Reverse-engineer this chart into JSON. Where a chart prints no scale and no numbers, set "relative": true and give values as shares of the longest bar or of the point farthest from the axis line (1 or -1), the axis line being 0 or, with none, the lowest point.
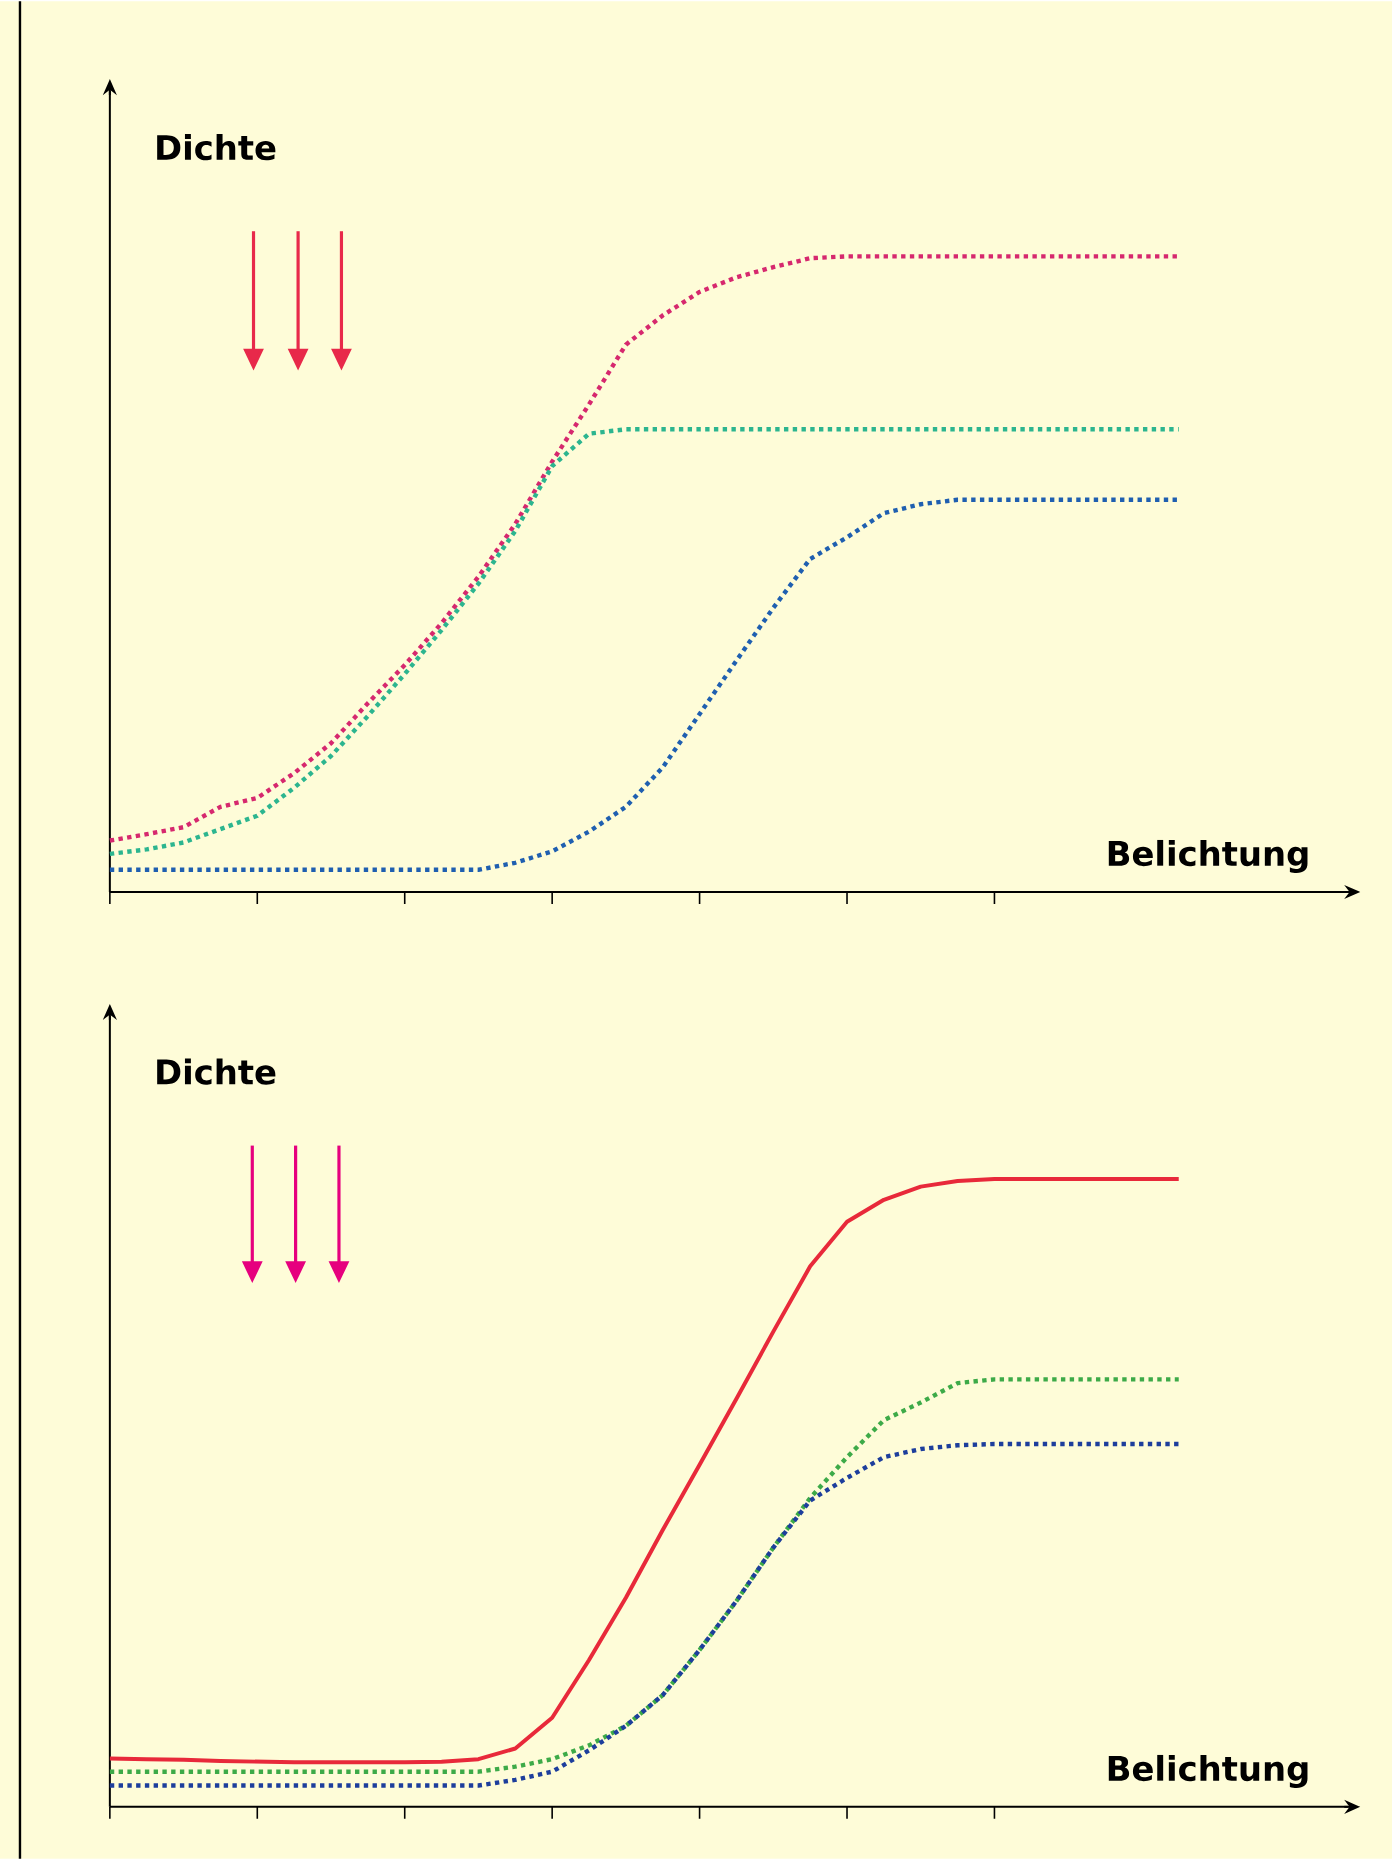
{
  "chart_data": [
    {
      "type": "line",
      "relative": true,
      "xlabel": "Belichtung",
      "ylabel": "Dichte",
      "categories": [
        null,
        null,
        null,
        null,
        null,
        null,
        null,
        null,
        null,
        null,
        null,
        null,
        null,
        null,
        null,
        null,
        null,
        null,
        null,
        null,
        null,
        null,
        null,
        null,
        null,
        null,
        null,
        null,
        null,
        null
      ],
      "series": [
        {
          "color": "#d6286e",
          "line_style": "dotted",
          "values": [
            0.081,
            0.091,
            0.102,
            0.134,
            0.148,
            0.187,
            0.234,
            0.297,
            0.357,
            0.423,
            0.496,
            0.579,
            0.677,
            0.767,
            0.861,
            0.907,
            0.944,
            0.967,
            0.983,
            0.997,
            1.0,
            1.0,
            1.0,
            1.0,
            1.0,
            1.0,
            1.0,
            1.0,
            1.0,
            1.0
          ]
        },
        {
          "color": "#2cb58f",
          "line_style": "dotted",
          "values": [
            0.06,
            0.067,
            0.078,
            0.099,
            0.12,
            0.164,
            0.214,
            0.277,
            0.343,
            0.412,
            0.485,
            0.568,
            0.67,
            0.721,
            0.728,
            0.728,
            0.728,
            0.728,
            0.728,
            0.728,
            0.728,
            0.728,
            0.728,
            0.728,
            0.728,
            0.728,
            0.728,
            0.728,
            0.728,
            0.728
          ]
        },
        {
          "color": "#1f5fb0",
          "line_style": "dotted",
          "values": [
            0.035,
            0.035,
            0.035,
            0.035,
            0.035,
            0.035,
            0.035,
            0.035,
            0.035,
            0.035,
            0.035,
            0.046,
            0.064,
            0.095,
            0.134,
            0.196,
            0.28,
            0.364,
            0.447,
            0.524,
            0.558,
            0.596,
            0.61,
            0.617,
            0.617,
            0.617,
            0.617,
            0.617,
            0.617,
            0.617
          ]
        }
      ]
    },
    {
      "type": "line",
      "relative": true,
      "xlabel": "Belichtung",
      "ylabel": "Dichte",
      "categories": [
        null,
        null,
        null,
        null,
        null,
        null,
        null,
        null,
        null,
        null,
        null,
        null,
        null,
        null,
        null,
        null,
        null,
        null,
        null,
        null,
        null,
        null,
        null,
        null,
        null,
        null,
        null,
        null,
        null,
        null
      ],
      "series": [
        {
          "color": "#e8293a",
          "line_style": "solid",
          "values": [
            0.077,
            0.076,
            0.075,
            0.073,
            0.072,
            0.071,
            0.071,
            0.071,
            0.071,
            0.072,
            0.076,
            0.093,
            0.142,
            0.234,
            0.333,
            0.441,
            0.545,
            0.65,
            0.757,
            0.861,
            0.932,
            0.967,
            0.988,
            0.997,
            1.0,
            1.0,
            1.0,
            1.0,
            1.0,
            1.0
          ]
        },
        {
          "color": "#3daa48",
          "line_style": "dotted",
          "values": [
            0.056,
            0.056,
            0.056,
            0.056,
            0.056,
            0.056,
            0.056,
            0.056,
            0.056,
            0.056,
            0.056,
            0.064,
            0.076,
            0.098,
            0.129,
            0.178,
            0.25,
            0.328,
            0.413,
            0.492,
            0.557,
            0.616,
            0.644,
            0.675,
            0.681,
            0.681,
            0.681,
            0.681,
            0.681,
            0.681
          ]
        },
        {
          "color": "#1d3e9c",
          "line_style": "dotted",
          "values": [
            0.034,
            0.034,
            0.034,
            0.034,
            0.034,
            0.034,
            0.034,
            0.034,
            0.034,
            0.034,
            0.034,
            0.043,
            0.056,
            0.09,
            0.129,
            0.178,
            0.25,
            0.328,
            0.413,
            0.488,
            0.524,
            0.557,
            0.57,
            0.576,
            0.578,
            0.578,
            0.578,
            0.578,
            0.578,
            0.578
          ]
        }
      ]
    }
  ]
}
